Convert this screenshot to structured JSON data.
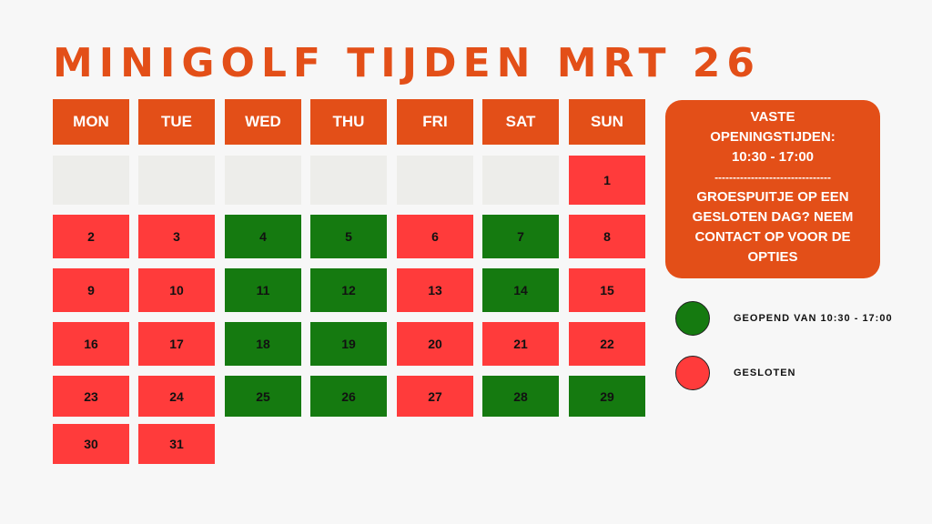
{
  "title": "MINIGOLF TIJDEN MRT 26",
  "colors": {
    "accent": "#e34f18",
    "open": "#157a10",
    "closed": "#ff3b3b",
    "empty": "#ededea"
  },
  "days": [
    "MON",
    "TUE",
    "WED",
    "THU",
    "FRI",
    "SAT",
    "SUN"
  ],
  "weeks": [
    [
      null,
      null,
      null,
      null,
      null,
      null,
      {
        "day": "1",
        "status": "closed"
      }
    ],
    [
      {
        "day": "2",
        "status": "closed"
      },
      {
        "day": "3",
        "status": "closed"
      },
      {
        "day": "4",
        "status": "open"
      },
      {
        "day": "5",
        "status": "open"
      },
      {
        "day": "6",
        "status": "closed"
      },
      {
        "day": "7",
        "status": "open"
      },
      {
        "day": "8",
        "status": "closed"
      }
    ],
    [
      {
        "day": "9",
        "status": "closed"
      },
      {
        "day": "10",
        "status": "closed"
      },
      {
        "day": "11",
        "status": "open"
      },
      {
        "day": "12",
        "status": "open"
      },
      {
        "day": "13",
        "status": "closed"
      },
      {
        "day": "14",
        "status": "open"
      },
      {
        "day": "15",
        "status": "closed"
      }
    ],
    [
      {
        "day": "16",
        "status": "closed"
      },
      {
        "day": "17",
        "status": "closed"
      },
      {
        "day": "18",
        "status": "open"
      },
      {
        "day": "19",
        "status": "open"
      },
      {
        "day": "20",
        "status": "closed"
      },
      {
        "day": "21",
        "status": "closed"
      },
      {
        "day": "22",
        "status": "closed"
      }
    ],
    [
      {
        "day": "23",
        "status": "closed"
      },
      {
        "day": "24",
        "status": "closed"
      },
      {
        "day": "25",
        "status": "open"
      },
      {
        "day": "26",
        "status": "open"
      },
      {
        "day": "27",
        "status": "closed"
      },
      {
        "day": "28",
        "status": "open"
      },
      {
        "day": "29",
        "status": "open"
      }
    ],
    [
      {
        "day": "30",
        "status": "closed"
      },
      {
        "day": "31",
        "status": "closed"
      }
    ]
  ],
  "info": {
    "line1": "VASTE",
    "line2": "OPENINGSTIJDEN:",
    "line3": "10:30 - 17:00",
    "separator": "--------------------------------",
    "line4": "GROESPUITJE OP EEN",
    "line5": "GESLOTEN DAG? NEEM",
    "line6": "CONTACT OP VOOR DE",
    "line7": "OPTIES"
  },
  "legend": {
    "open_label": "GEOPEND VAN 10:30 - 17:00",
    "closed_label": "GESLOTEN"
  }
}
